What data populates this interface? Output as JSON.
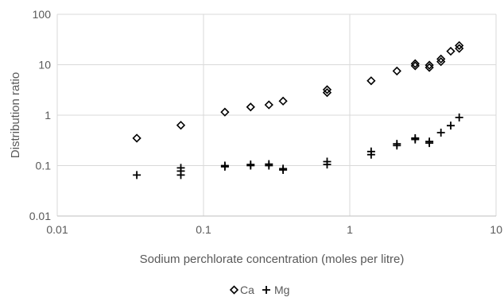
{
  "chart_data": {
    "type": "scatter",
    "title": "",
    "xlabel": "Sodium perchlorate concentration (moles per litre)",
    "ylabel": "Distribution ratio",
    "x_scale": "log",
    "y_scale": "log",
    "xlim": [
      0.01,
      10
    ],
    "ylim": [
      0.01,
      100
    ],
    "x_ticks": [
      "0.01",
      "0.1",
      "1",
      "10"
    ],
    "y_ticks": [
      "100",
      "10",
      "1",
      "0.1",
      "0.01"
    ],
    "grid": true,
    "legend_position": "bottom",
    "series": [
      {
        "name": "Ca",
        "marker": "diamond",
        "color": "#000000",
        "points": [
          {
            "x": 0.035,
            "y": 0.35
          },
          {
            "x": 0.07,
            "y": 0.63
          },
          {
            "x": 0.14,
            "y": 1.15
          },
          {
            "x": 0.21,
            "y": 1.45
          },
          {
            "x": 0.28,
            "y": 1.6
          },
          {
            "x": 0.35,
            "y": 1.9
          },
          {
            "x": 0.7,
            "y": 2.8
          },
          {
            "x": 0.7,
            "y": 3.2
          },
          {
            "x": 1.4,
            "y": 4.8
          },
          {
            "x": 2.1,
            "y": 7.5
          },
          {
            "x": 2.8,
            "y": 9.5
          },
          {
            "x": 2.8,
            "y": 10.5
          },
          {
            "x": 3.5,
            "y": 8.8
          },
          {
            "x": 3.5,
            "y": 9.8
          },
          {
            "x": 4.2,
            "y": 11.5
          },
          {
            "x": 4.2,
            "y": 13
          },
          {
            "x": 4.9,
            "y": 18.5
          },
          {
            "x": 5.6,
            "y": 21
          },
          {
            "x": 5.6,
            "y": 24
          }
        ]
      },
      {
        "name": "Mg",
        "marker": "plus",
        "color": "#000000",
        "points": [
          {
            "x": 0.035,
            "y": 0.065
          },
          {
            "x": 0.07,
            "y": 0.065
          },
          {
            "x": 0.07,
            "y": 0.078
          },
          {
            "x": 0.07,
            "y": 0.09
          },
          {
            "x": 0.14,
            "y": 0.095
          },
          {
            "x": 0.14,
            "y": 0.1
          },
          {
            "x": 0.21,
            "y": 0.1
          },
          {
            "x": 0.21,
            "y": 0.105
          },
          {
            "x": 0.28,
            "y": 0.1
          },
          {
            "x": 0.28,
            "y": 0.107
          },
          {
            "x": 0.35,
            "y": 0.082
          },
          {
            "x": 0.35,
            "y": 0.087
          },
          {
            "x": 0.7,
            "y": 0.105
          },
          {
            "x": 0.7,
            "y": 0.12
          },
          {
            "x": 1.4,
            "y": 0.165
          },
          {
            "x": 1.4,
            "y": 0.19
          },
          {
            "x": 2.1,
            "y": 0.25
          },
          {
            "x": 2.1,
            "y": 0.27
          },
          {
            "x": 2.8,
            "y": 0.33
          },
          {
            "x": 2.8,
            "y": 0.35
          },
          {
            "x": 3.5,
            "y": 0.28
          },
          {
            "x": 3.5,
            "y": 0.3
          },
          {
            "x": 4.2,
            "y": 0.45
          },
          {
            "x": 4.9,
            "y": 0.62
          },
          {
            "x": 5.6,
            "y": 0.9
          }
        ]
      }
    ]
  }
}
